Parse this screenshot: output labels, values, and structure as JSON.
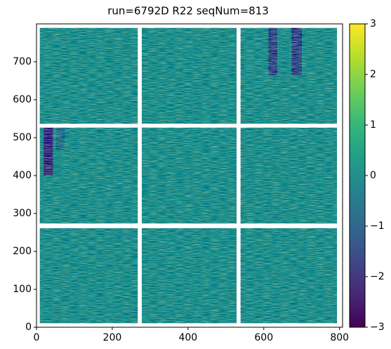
{
  "chart_data": {
    "type": "heatmap",
    "title": "run=6792D R22 seqNum=813",
    "xlim": [
      0,
      808
    ],
    "ylim": [
      0,
      800
    ],
    "xticks": [
      0,
      200,
      400,
      600,
      800
    ],
    "yticks": [
      0,
      100,
      200,
      300,
      400,
      500,
      600,
      700
    ],
    "colormap": "viridis",
    "clim": [
      -3,
      3
    ],
    "colorbar_ticks": [
      {
        "value": -3,
        "label": "−3"
      },
      {
        "value": -2,
        "label": "−2"
      },
      {
        "value": -1,
        "label": "−1"
      },
      0,
      1,
      2,
      3
    ],
    "tiles": [
      {
        "x": [
          9,
          267
        ],
        "y": [
          11,
          261
        ],
        "value": 0
      },
      {
        "x": [
          278,
          528
        ],
        "y": [
          11,
          261
        ],
        "value": 0
      },
      {
        "x": [
          539,
          793
        ],
        "y": [
          11,
          261
        ],
        "value": 0
      },
      {
        "x": [
          9,
          267
        ],
        "y": [
          274,
          526
        ],
        "value": 0
      },
      {
        "x": [
          278,
          528
        ],
        "y": [
          274,
          526
        ],
        "value": 0
      },
      {
        "x": [
          539,
          793
        ],
        "y": [
          274,
          526
        ],
        "value": 0
      },
      {
        "x": [
          9,
          267
        ],
        "y": [
          537,
          789
        ],
        "value": 0
      },
      {
        "x": [
          278,
          528
        ],
        "y": [
          537,
          789
        ],
        "value": 0
      },
      {
        "x": [
          539,
          793
        ],
        "y": [
          537,
          789
        ],
        "value": 0
      }
    ],
    "stripes": [
      {
        "x": [
          613,
          635
        ],
        "y": [
          665,
          789
        ],
        "value": -1.5
      },
      {
        "x": [
          674,
          700
        ],
        "y": [
          665,
          789
        ],
        "value": -1.5
      },
      {
        "x": [
          19,
          43
        ],
        "y": [
          400,
          526
        ],
        "value": -2
      },
      {
        "x": [
          52,
          74
        ],
        "y": [
          470,
          526
        ],
        "value": -0.7
      }
    ]
  }
}
